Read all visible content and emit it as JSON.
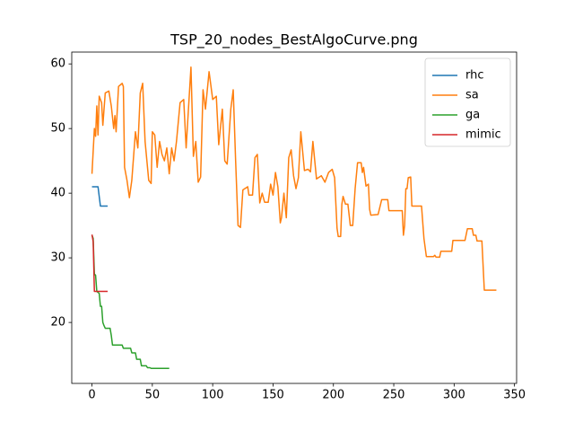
{
  "chart_data": {
    "type": "line",
    "title": "TSP_20_nodes_BestAlgoCurve.png",
    "xlim": [
      -16.75,
      351.75
    ],
    "xticks": [
      0,
      50,
      100,
      150,
      200,
      250,
      300,
      350
    ],
    "ylim": [
      10.57,
      61.83
    ],
    "yticks": [
      20,
      30,
      40,
      50,
      60
    ],
    "legend": "upper right",
    "series": [
      {
        "name": "rhc",
        "color": "#1f77b4",
        "x": [
          0,
          5,
          7,
          13
        ],
        "values": [
          41,
          41,
          38,
          38
        ]
      },
      {
        "name": "sa",
        "color": "#ff7f0e",
        "x": [
          0,
          2,
          3,
          4,
          5,
          6,
          8,
          9,
          11,
          14,
          16,
          18,
          19,
          20,
          22,
          25,
          26,
          27,
          29,
          31,
          33,
          35,
          36,
          38,
          40,
          42,
          44,
          47,
          49,
          50,
          52,
          54,
          56,
          58,
          60,
          62,
          64,
          66,
          68,
          70,
          73,
          76,
          78,
          82,
          84,
          86,
          88,
          90,
          92,
          94,
          97,
          100,
          103,
          105,
          108,
          110,
          112,
          115,
          117,
          119,
          121,
          123,
          125,
          129,
          130,
          133,
          135,
          137,
          139,
          141,
          143,
          146,
          148,
          150,
          152,
          154,
          156,
          157,
          159,
          161,
          163,
          165,
          167,
          169,
          171,
          173,
          176,
          179,
          181,
          183,
          186,
          190,
          193,
          196,
          199,
          201,
          203,
          204,
          206,
          207,
          208,
          210,
          212,
          214,
          216,
          218,
          220,
          223,
          224,
          225,
          227,
          229,
          230,
          231,
          237,
          240,
          245,
          246,
          257,
          258,
          259,
          260,
          261,
          262,
          264,
          265,
          273,
          275,
          277,
          283,
          284,
          285,
          288,
          289,
          298,
          299,
          309,
          311,
          315,
          316,
          318,
          319,
          323,
          325,
          335
        ],
        "values": [
          43,
          50,
          48.8,
          53.5,
          49,
          55,
          54,
          50.5,
          55.5,
          55.8,
          53.5,
          50,
          52,
          49.5,
          56.5,
          57,
          56.5,
          44,
          42,
          39.3,
          42,
          47,
          49.5,
          47,
          55.5,
          57,
          48,
          42,
          41.5,
          49.5,
          49,
          44,
          48,
          46,
          45,
          47,
          43,
          47,
          45,
          48,
          54,
          54.5,
          47,
          59.5,
          45.7,
          48,
          41.7,
          42.5,
          56,
          53,
          58.8,
          54.5,
          55,
          47.5,
          53,
          45,
          44.5,
          53,
          56,
          45,
          35,
          34.7,
          40.5,
          41,
          39.7,
          39.7,
          45.5,
          46,
          38.5,
          40,
          38.6,
          38.6,
          41.4,
          39.7,
          43.2,
          41,
          35.4,
          36.2,
          40,
          36.2,
          45.5,
          46.7,
          42.7,
          40.7,
          42.4,
          49.5,
          43.5,
          43.7,
          43.3,
          48,
          42.2,
          42.7,
          41.7,
          43.2,
          43.7,
          42.4,
          34.6,
          33.3,
          33.3,
          38.3,
          39.5,
          38.3,
          38.3,
          35,
          35,
          40.7,
          44.7,
          44.7,
          43.2,
          44,
          41.1,
          41.4,
          37.5,
          36.6,
          36.7,
          39,
          39,
          37.3,
          37.3,
          33.5,
          35,
          40.7,
          40.7,
          42.4,
          42.5,
          38,
          38,
          33,
          30.2,
          30.2,
          30.4,
          30.1,
          30.1,
          31,
          31,
          32.7,
          32.7,
          34.5,
          34.5,
          33.5,
          33.5,
          32.6,
          32.6,
          25,
          25
        ]
      },
      {
        "name": "ga",
        "color": "#2ca02c",
        "x": [
          0,
          1,
          2,
          3,
          4,
          6,
          7,
          8,
          9,
          10,
          11,
          15,
          16,
          17,
          25,
          26,
          32,
          33,
          36,
          37,
          40,
          41,
          45,
          46,
          48,
          49,
          64
        ],
        "values": [
          33.5,
          33,
          27.5,
          27.3,
          24.8,
          24.5,
          22.5,
          22.5,
          20,
          19.5,
          19.1,
          19.1,
          18,
          16.5,
          16.5,
          16,
          16,
          15.3,
          15.3,
          14.3,
          14.3,
          13.3,
          13.3,
          13,
          13,
          12.9,
          12.9
        ]
      },
      {
        "name": "mimic",
        "color": "#d62728",
        "x": [
          0,
          1,
          2,
          13
        ],
        "values": [
          33.6,
          32.5,
          24.8,
          24.8
        ]
      }
    ]
  }
}
